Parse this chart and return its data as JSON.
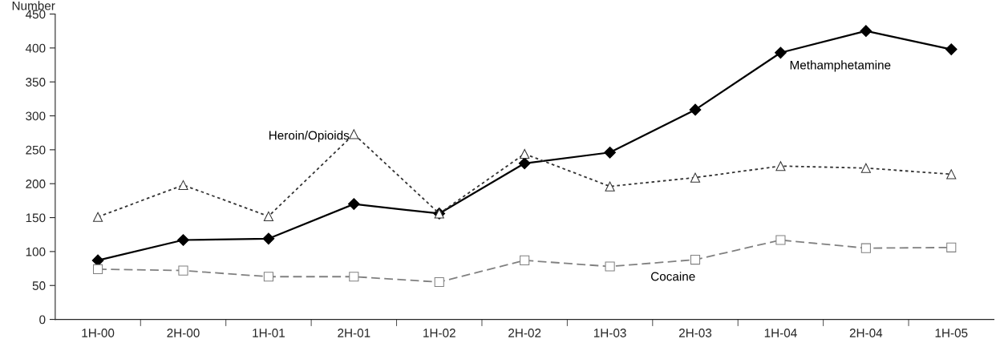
{
  "chart_data": {
    "type": "line",
    "ylabel": "Number",
    "categories": [
      "1H-00",
      "2H-00",
      "1H-01",
      "2H-01",
      "1H-02",
      "2H-02",
      "1H-03",
      "2H-03",
      "1H-04",
      "2H-04",
      "1H-05"
    ],
    "series": [
      {
        "name": "Methamphetamine",
        "color": "#000000",
        "marker": "diamond",
        "line_style": "solid",
        "values": [
          87,
          117,
          119,
          170,
          156,
          230,
          246,
          309,
          393,
          425,
          398
        ]
      },
      {
        "name": "Heroin/Opioids",
        "color": "#333333",
        "marker": "triangle",
        "line_style": "dotted",
        "values": [
          151,
          198,
          152,
          273,
          156,
          244,
          196,
          209,
          226,
          223,
          214
        ]
      },
      {
        "name": "Cocaine",
        "color": "#808080",
        "marker": "square",
        "line_style": "dashed",
        "values": [
          74,
          72,
          63,
          63,
          55,
          87,
          78,
          88,
          117,
          105,
          106
        ]
      }
    ],
    "ylim": [
      0,
      450
    ],
    "yticks": [
      0,
      50,
      100,
      150,
      200,
      250,
      300,
      350,
      400,
      450
    ],
    "grid": false,
    "legend": false
  }
}
